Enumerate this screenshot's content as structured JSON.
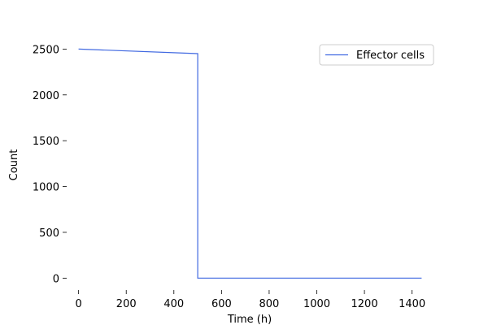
{
  "chart_data": {
    "type": "line",
    "title": "",
    "xlabel": "Time (h)",
    "ylabel": "Count",
    "xlim": [
      -50,
      1490
    ],
    "ylim": [
      -130,
      2610
    ],
    "xticks": [
      0,
      200,
      400,
      600,
      800,
      1000,
      1200,
      1400
    ],
    "yticks": [
      0,
      500,
      1000,
      1500,
      2000,
      2500
    ],
    "grid": false,
    "legend_position": "top-right",
    "series": [
      {
        "name": "Effector cells",
        "color": "#4169e1",
        "x": [
          0,
          500,
          500,
          1440
        ],
        "y": [
          2500,
          2450,
          0,
          0
        ]
      }
    ]
  }
}
